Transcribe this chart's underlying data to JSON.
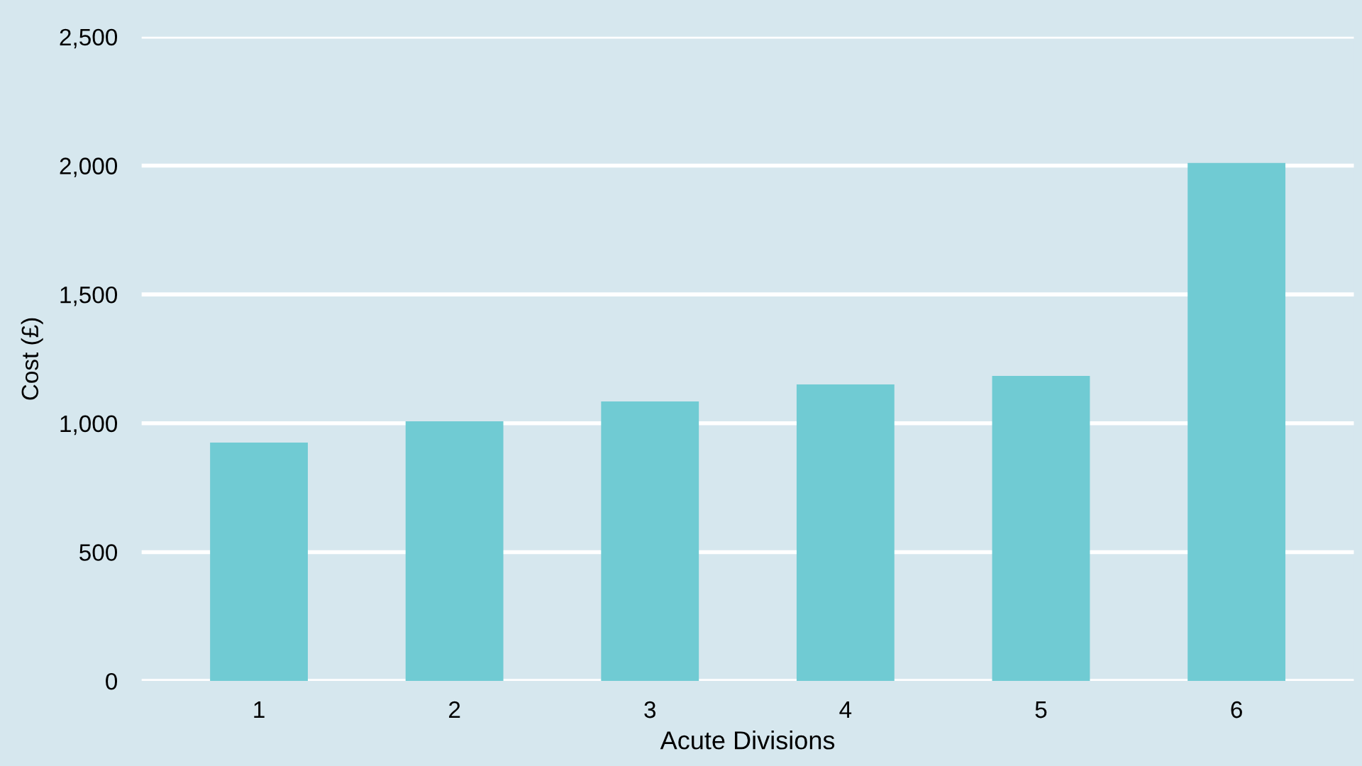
{
  "chart_data": {
    "type": "bar",
    "xlabel": "Acute Divisions",
    "ylabel": "Cost (£)",
    "categories": [
      "1",
      "2",
      "3",
      "4",
      "5",
      "6"
    ],
    "values": [
      925,
      1008,
      1085,
      1151,
      1184,
      2010
    ],
    "color": "#70cbd3",
    "ylim": [
      0,
      2500
    ],
    "yticks": [
      {
        "value": 0,
        "label": "0"
      },
      {
        "value": 500,
        "label": "500"
      },
      {
        "value": 1000,
        "label": "1,000"
      },
      {
        "value": 1500,
        "label": "1,500"
      },
      {
        "value": 2000,
        "label": "2,000"
      },
      {
        "value": 2500,
        "label": "2,500"
      }
    ],
    "grid": "y"
  }
}
